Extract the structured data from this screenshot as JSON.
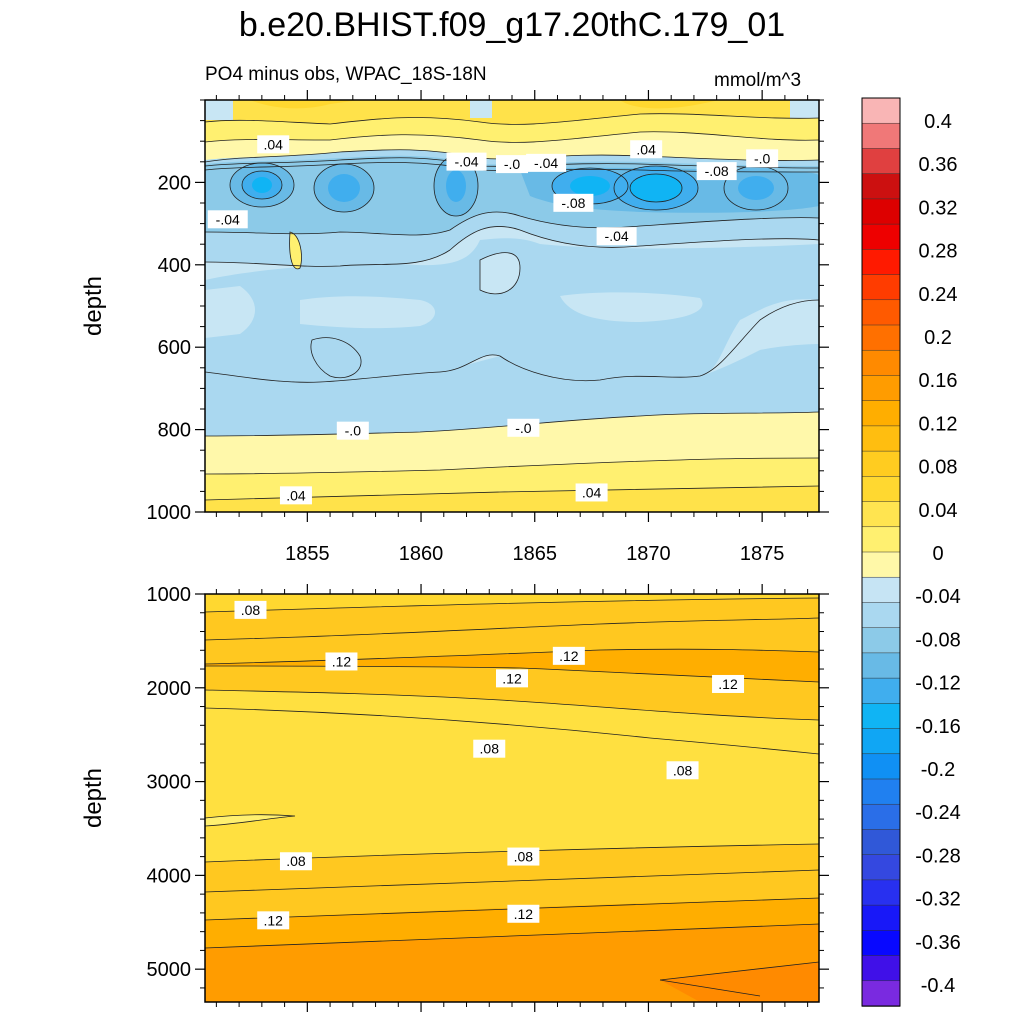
{
  "title": "b.e20.BHIST.f09_g17.20thC.179_01",
  "subtitle_left": "PO4 minus obs, WPAC_18S-18N",
  "subtitle_right": "mmol/m^3",
  "chart_data": [
    {
      "type": "heatmap",
      "panel": "upper",
      "ylabel": "depth",
      "xlabel": "",
      "xlim": [
        1850.5,
        1877.5
      ],
      "ylim": [
        1000,
        0
      ],
      "x_ticks": [
        1855,
        1860,
        1865,
        1870,
        1875
      ],
      "y_ticks": [
        200,
        400,
        600,
        800,
        1000
      ],
      "contour_labels": [
        {
          "text": ".04",
          "x": 1853.5,
          "y": 110
        },
        {
          "text": "-.04",
          "x": 1862.0,
          "y": 152
        },
        {
          "text": "-.0",
          "x": 1864.0,
          "y": 158
        },
        {
          "text": "-.04",
          "x": 1865.5,
          "y": 155
        },
        {
          "text": ".04",
          "x": 1869.9,
          "y": 122
        },
        {
          "text": "-.0",
          "x": 1875.0,
          "y": 144
        },
        {
          "text": "-.08",
          "x": 1873.0,
          "y": 175
        },
        {
          "text": "-.04",
          "x": 1851.5,
          "y": 292
        },
        {
          "text": "-.08",
          "x": 1866.7,
          "y": 252
        },
        {
          "text": "-.04",
          "x": 1868.6,
          "y": 333
        },
        {
          "text": "-.0",
          "x": 1857.0,
          "y": 805
        },
        {
          "text": "-.0",
          "x": 1864.5,
          "y": 798
        },
        {
          "text": ".04",
          "x": 1854.5,
          "y": 962
        },
        {
          "text": ".04",
          "x": 1867.5,
          "y": 955
        }
      ]
    },
    {
      "type": "heatmap",
      "panel": "lower",
      "ylabel": "depth",
      "xlabel": "",
      "xlim": [
        1850.5,
        1877.5
      ],
      "ylim": [
        5350,
        1000
      ],
      "y_ticks": [
        1000,
        2000,
        3000,
        4000,
        5000
      ],
      "contour_labels": [
        {
          "text": ".08",
          "x": 1852.5,
          "y": 1180
        },
        {
          "text": ".12",
          "x": 1856.5,
          "y": 1730
        },
        {
          "text": ".12",
          "x": 1866.5,
          "y": 1670
        },
        {
          "text": ".12",
          "x": 1864.0,
          "y": 1910
        },
        {
          "text": ".12",
          "x": 1873.5,
          "y": 1970
        },
        {
          "text": ".08",
          "x": 1863.0,
          "y": 2660
        },
        {
          "text": ".08",
          "x": 1871.5,
          "y": 2890
        },
        {
          "text": ".08",
          "x": 1854.5,
          "y": 3860
        },
        {
          "text": ".08",
          "x": 1864.5,
          "y": 3810
        },
        {
          "text": ".12",
          "x": 1853.5,
          "y": 4490
        },
        {
          "text": ".12",
          "x": 1864.5,
          "y": 4420
        }
      ]
    }
  ],
  "colorbar": {
    "labels": [
      "0.4",
      "0.36",
      "0.32",
      "0.28",
      "0.24",
      "0.2",
      "0.16",
      "0.12",
      "0.08",
      "0.04",
      "0",
      "-0.04",
      "-0.08",
      "-0.12",
      "-0.16",
      "-0.2",
      "-0.24",
      "-0.28",
      "-0.32",
      "-0.36",
      "-0.4"
    ],
    "colors": [
      "#f9b5b5",
      "#f07878",
      "#e04040",
      "#cc1010",
      "#dd0000",
      "#ee0000",
      "#ff1a00",
      "#ff3c00",
      "#ff5a00",
      "#ff7000",
      "#ff8a00",
      "#ff9c00",
      "#ffae00",
      "#ffbe10",
      "#ffcc20",
      "#ffd830",
      "#ffe450",
      "#fff070",
      "#fff8a8",
      "#c6e4f4",
      "#aad8f0",
      "#8ccae8",
      "#68bae6",
      "#40aeee",
      "#10b4f4",
      "#10a6f4",
      "#1090f4",
      "#2080f0",
      "#2a6ee8",
      "#3058d8",
      "#3448e0",
      "#2830f0",
      "#1818f8",
      "#0808ff",
      "#4010e8",
      "#7a2ae0"
    ]
  }
}
